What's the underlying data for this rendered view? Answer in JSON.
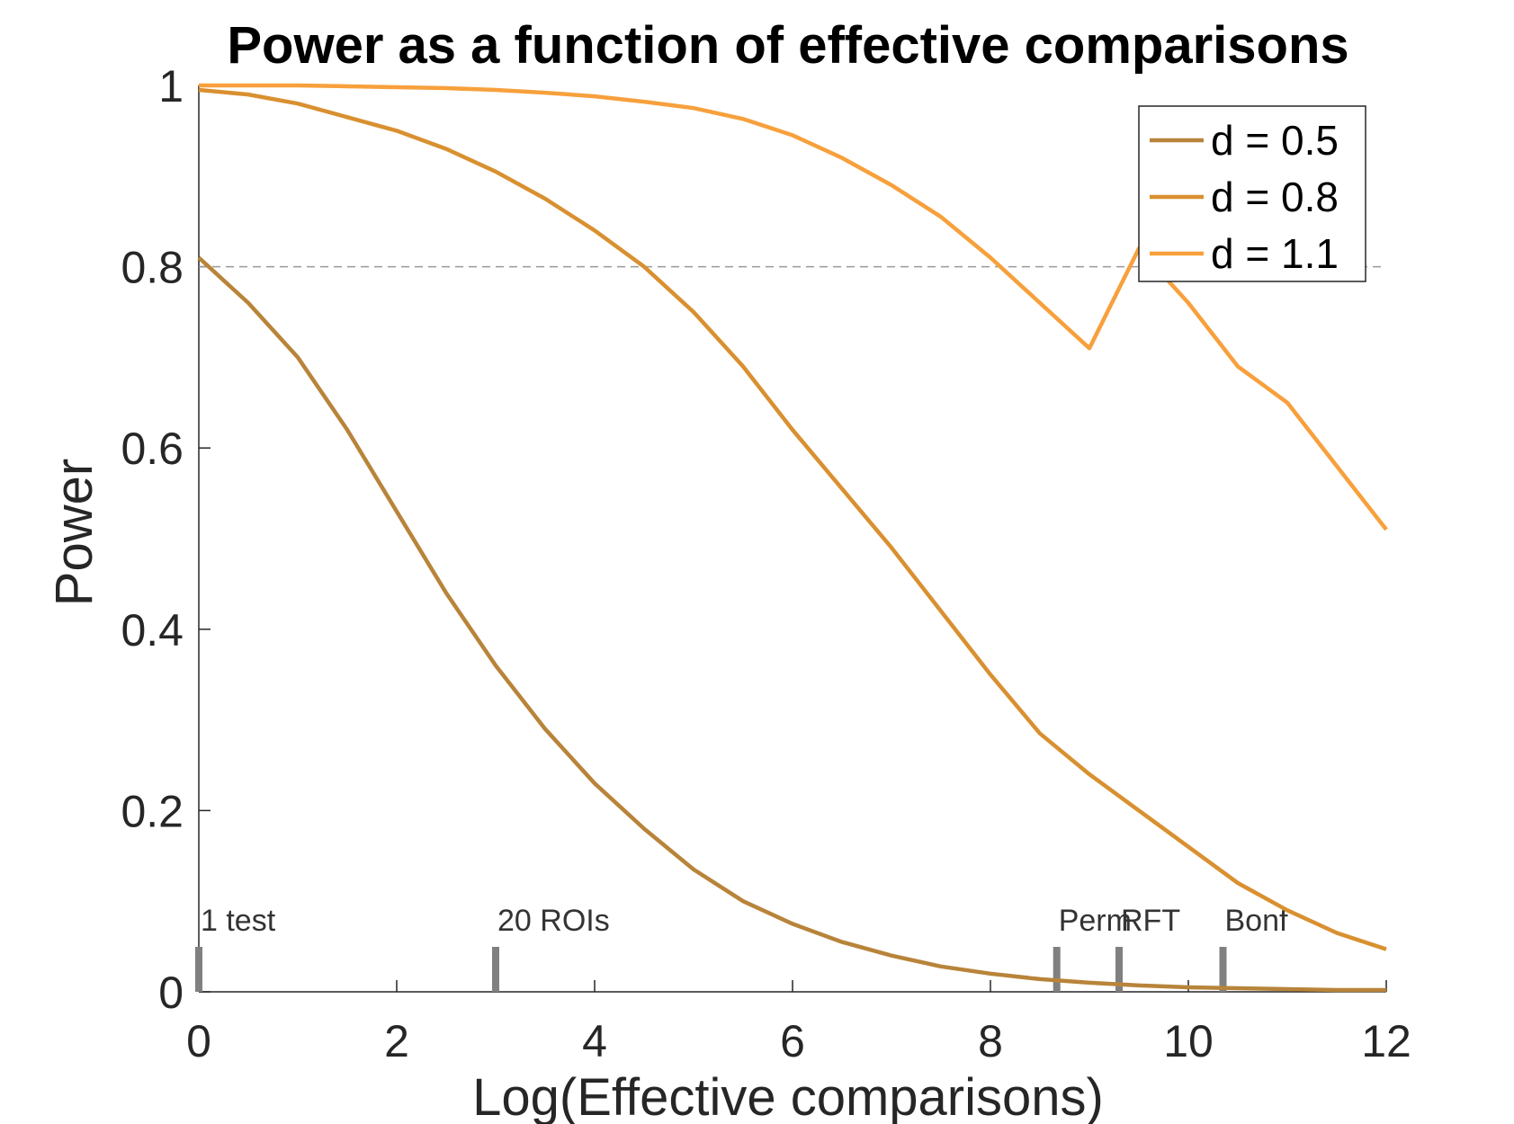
{
  "chart_data": {
    "type": "line",
    "title": "Power as a function of effective comparisons",
    "xlabel": "Log(Effective comparisons)",
    "ylabel": "Power",
    "xlim": [
      0,
      12
    ],
    "ylim": [
      0,
      1
    ],
    "xticks": [
      0,
      2,
      4,
      6,
      8,
      10,
      12
    ],
    "xtick_labels": [
      "0",
      "2",
      "4",
      "6",
      "8",
      "10",
      "12"
    ],
    "yticks": [
      0,
      0.2,
      0.4,
      0.6,
      0.8,
      1
    ],
    "ytick_labels": [
      "0",
      "0.2",
      "0.4",
      "0.6",
      "0.8",
      "1"
    ],
    "grid": false,
    "legend_position": "top-right",
    "reference_line": {
      "y": 0.8,
      "style": "dashed",
      "color": "#999999"
    },
    "x": [
      0,
      0.5,
      1,
      1.5,
      2,
      2.5,
      3,
      3.5,
      4,
      4.5,
      5,
      5.5,
      6,
      6.5,
      7,
      7.5,
      8,
      8.5,
      9,
      9.5,
      10,
      10.5,
      11,
      11.5,
      12
    ],
    "series": [
      {
        "name": "d = 0.5",
        "color": "#B8843A",
        "values": [
          0.81,
          0.76,
          0.7,
          0.62,
          0.53,
          0.44,
          0.36,
          0.29,
          0.23,
          0.18,
          0.135,
          0.1,
          0.075,
          0.055,
          0.04,
          0.028,
          0.02,
          0.014,
          0.01,
          0.007,
          0.005,
          0.004,
          0.003,
          0.002,
          0.002
        ]
      },
      {
        "name": "d = 0.8",
        "color": "#D99030",
        "values": [
          0.995,
          0.99,
          0.98,
          0.965,
          0.95,
          0.93,
          0.905,
          0.875,
          0.84,
          0.8,
          0.75,
          0.69,
          0.62,
          0.555,
          0.49,
          0.42,
          0.35,
          0.285,
          0.24,
          0.2,
          0.16,
          0.12,
          0.09,
          0.065,
          0.047
        ]
      },
      {
        "name": "d = 1.1",
        "color": "#F7A03C",
        "values": [
          1.0,
          1.0,
          1.0,
          0.999,
          0.998,
          0.997,
          0.995,
          0.992,
          0.988,
          0.982,
          0.975,
          0.963,
          0.945,
          0.92,
          0.89,
          0.855,
          0.81,
          0.76,
          0.71,
          0.82,
          0.76,
          0.69,
          0.65,
          0.58,
          0.51
        ]
      }
    ],
    "markers": [
      {
        "x": 0,
        "label": "1 test"
      },
      {
        "x": 3,
        "label": "20 ROIs"
      },
      {
        "x": 8.67,
        "label": "Perm"
      },
      {
        "x": 9.3,
        "label": "RFT"
      },
      {
        "x": 10.35,
        "label": "Bonf"
      }
    ]
  }
}
